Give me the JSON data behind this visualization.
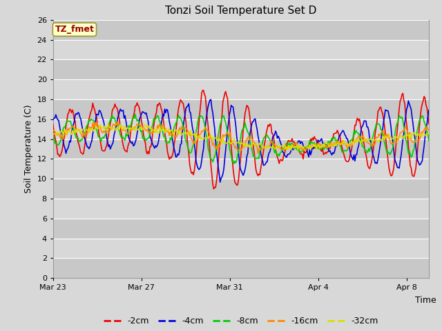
{
  "title": "Tonzi Soil Temperature Set D",
  "xlabel": "Time",
  "ylabel": "Soil Temperature (C)",
  "ylim": [
    0,
    26
  ],
  "yticks": [
    0,
    2,
    4,
    6,
    8,
    10,
    12,
    14,
    16,
    18,
    20,
    22,
    24,
    26
  ],
  "bg_color": "#d8d8d8",
  "plot_bg_color": "#d8d8d8",
  "grid_color": "#ffffff",
  "label_box_text": "TZ_fmet",
  "label_box_facecolor": "#ffffcc",
  "label_box_edgecolor": "#999933",
  "label_box_textcolor": "#990000",
  "series": [
    {
      "label": "-2cm",
      "color": "#ee0000",
      "lw": 1.2
    },
    {
      "label": "-4cm",
      "color": "#0000dd",
      "lw": 1.2
    },
    {
      "label": "-8cm",
      "color": "#00cc00",
      "lw": 1.2
    },
    {
      "label": "-16cm",
      "color": "#ff8800",
      "lw": 1.2
    },
    {
      "label": "-32cm",
      "color": "#dddd00",
      "lw": 1.2
    }
  ],
  "xtick_labels": [
    "Mar 23",
    "Mar 27",
    "Mar 31",
    "Apr 4",
    "Apr 8"
  ],
  "xtick_positions": [
    0,
    4,
    8,
    12,
    16
  ]
}
